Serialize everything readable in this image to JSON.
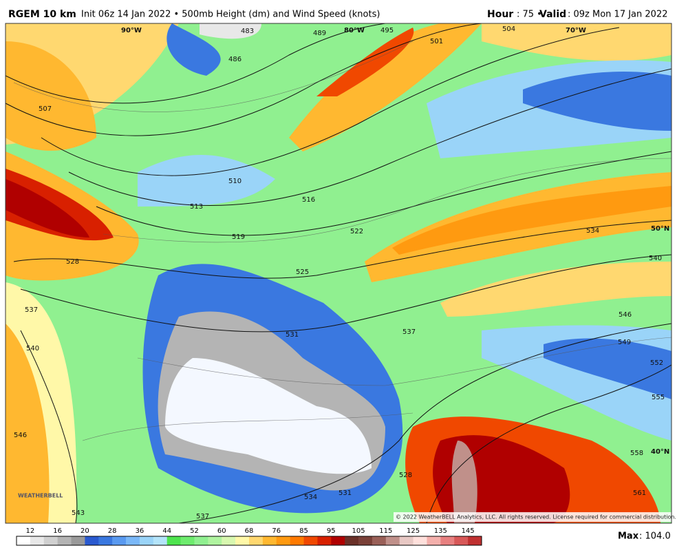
{
  "header": {
    "model": "RGEM 10 km",
    "description": "Init 06z 14 Jan 2022 • 500mb Height (dm) and Wind Speed (knots)",
    "hour_label": "Hour",
    "hour_text": ": 75 •",
    "valid_label": "Valid",
    "valid_text": ": 09z Mon 17 Jan 2022"
  },
  "map": {
    "grid_labels": [
      "90°W",
      "80°W",
      "70°W",
      "50°N",
      "40°N"
    ],
    "contour_labels": [
      "483",
      "486",
      "489",
      "495",
      "501",
      "504",
      "507",
      "510",
      "513",
      "516",
      "519",
      "522",
      "525",
      "528",
      "531",
      "534",
      "537",
      "540",
      "540",
      "546",
      "549",
      "552",
      "555",
      "558",
      "561",
      "537",
      "537",
      "534",
      "528",
      "543",
      "546",
      "531"
    ],
    "logo": "WEATHERBELL",
    "copyright": "© 2022 WeatherBELL Analytics, LLC. All rights reserved. License required for commercial distribution."
  },
  "colorbar": {
    "labels": [
      12,
      16,
      20,
      28,
      36,
      44,
      52,
      60,
      68,
      76,
      85,
      95,
      105,
      115,
      125,
      135,
      145
    ],
    "colors": [
      "#ffffff",
      "#e8e8e8",
      "#d0d0d0",
      "#b4b4b4",
      "#9a9a9a",
      "#2a5ad0",
      "#3a78e0",
      "#5a9af0",
      "#7ab8f8",
      "#9ad4f8",
      "#b4e4fa",
      "#4ee44e",
      "#6eec6e",
      "#90f090",
      "#b0f4a0",
      "#d8f8b0",
      "#fff8a8",
      "#ffd870",
      "#ffb830",
      "#ff9a10",
      "#ff7a00",
      "#f04800",
      "#d82000",
      "#b00000",
      "#6a3028",
      "#7a4038",
      "#9a6058",
      "#c0908a",
      "#e8c8c4",
      "#ffe0dc",
      "#f4b0ac",
      "#e88080",
      "#d85858",
      "#c03030"
    ]
  },
  "footer": {
    "max_label": "Max",
    "max_text": ": 104.0"
  }
}
